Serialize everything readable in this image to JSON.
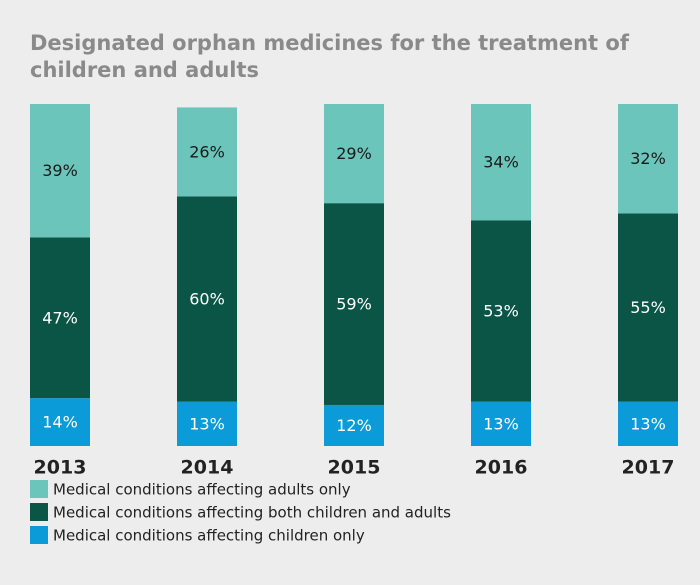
{
  "chart_data": {
    "type": "stacked_bar",
    "title": "Designated orphan medicines for the treatment of children and adults",
    "categories": [
      "2013",
      "2014",
      "2015",
      "2016",
      "2017"
    ],
    "ylim": [
      0,
      100
    ],
    "series": [
      {
        "name": "Medical conditions affecting adults only",
        "color": "#6cc5bb",
        "values": [
          39,
          26,
          29,
          34,
          32
        ],
        "value_labels": [
          "39%",
          "26%",
          "29%",
          "34%",
          "32%"
        ]
      },
      {
        "name": "Medical conditions affecting both children and adults",
        "color": "#0a5546",
        "values": [
          47,
          60,
          59,
          53,
          55
        ],
        "value_labels": [
          "47%",
          "60%",
          "59%",
          "53%",
          "55%"
        ]
      },
      {
        "name": "Medical conditions affecting children only",
        "color": "#0a9bd8",
        "values": [
          14,
          13,
          12,
          13,
          13
        ],
        "value_labels": [
          "14%",
          "13%",
          "12%",
          "13%",
          "13%"
        ]
      }
    ]
  }
}
